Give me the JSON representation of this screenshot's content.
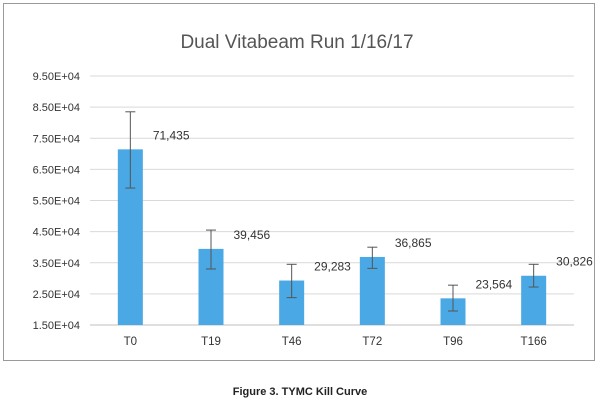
{
  "colors": {
    "bar": "#4aa8e4",
    "gridline": "#d9d9d9",
    "error_bar": "#555555"
  },
  "caption": "Figure 3. TYMC Kill Curve",
  "chart_data": {
    "type": "bar",
    "title": "Dual Vitabeam Run 1/16/17",
    "xlabel": "",
    "ylabel": "",
    "categories": [
      "T0",
      "T19",
      "T46",
      "T72",
      "T96",
      "T166"
    ],
    "values": [
      71435,
      39456,
      29283,
      36865,
      23564,
      30826
    ],
    "data_labels": [
      "71,435",
      "39,456",
      "29,283",
      "36,865",
      "23,564",
      "30,826"
    ],
    "error_high": [
      83500,
      45500,
      34500,
      40000,
      27800,
      34500
    ],
    "error_low": [
      59000,
      33000,
      23800,
      33200,
      19500,
      27200
    ],
    "ylim": [
      15000,
      95000
    ],
    "y_ticks": [
      15000,
      25000,
      35000,
      45000,
      55000,
      65000,
      75000,
      85000,
      95000
    ],
    "y_tick_labels": [
      "1.50E+04",
      "2.50E+04",
      "3.50E+04",
      "4.50E+04",
      "5.50E+04",
      "6.50E+04",
      "7.50E+04",
      "8.50E+04",
      "9.50E+04"
    ],
    "grid": true,
    "legend": "none"
  }
}
